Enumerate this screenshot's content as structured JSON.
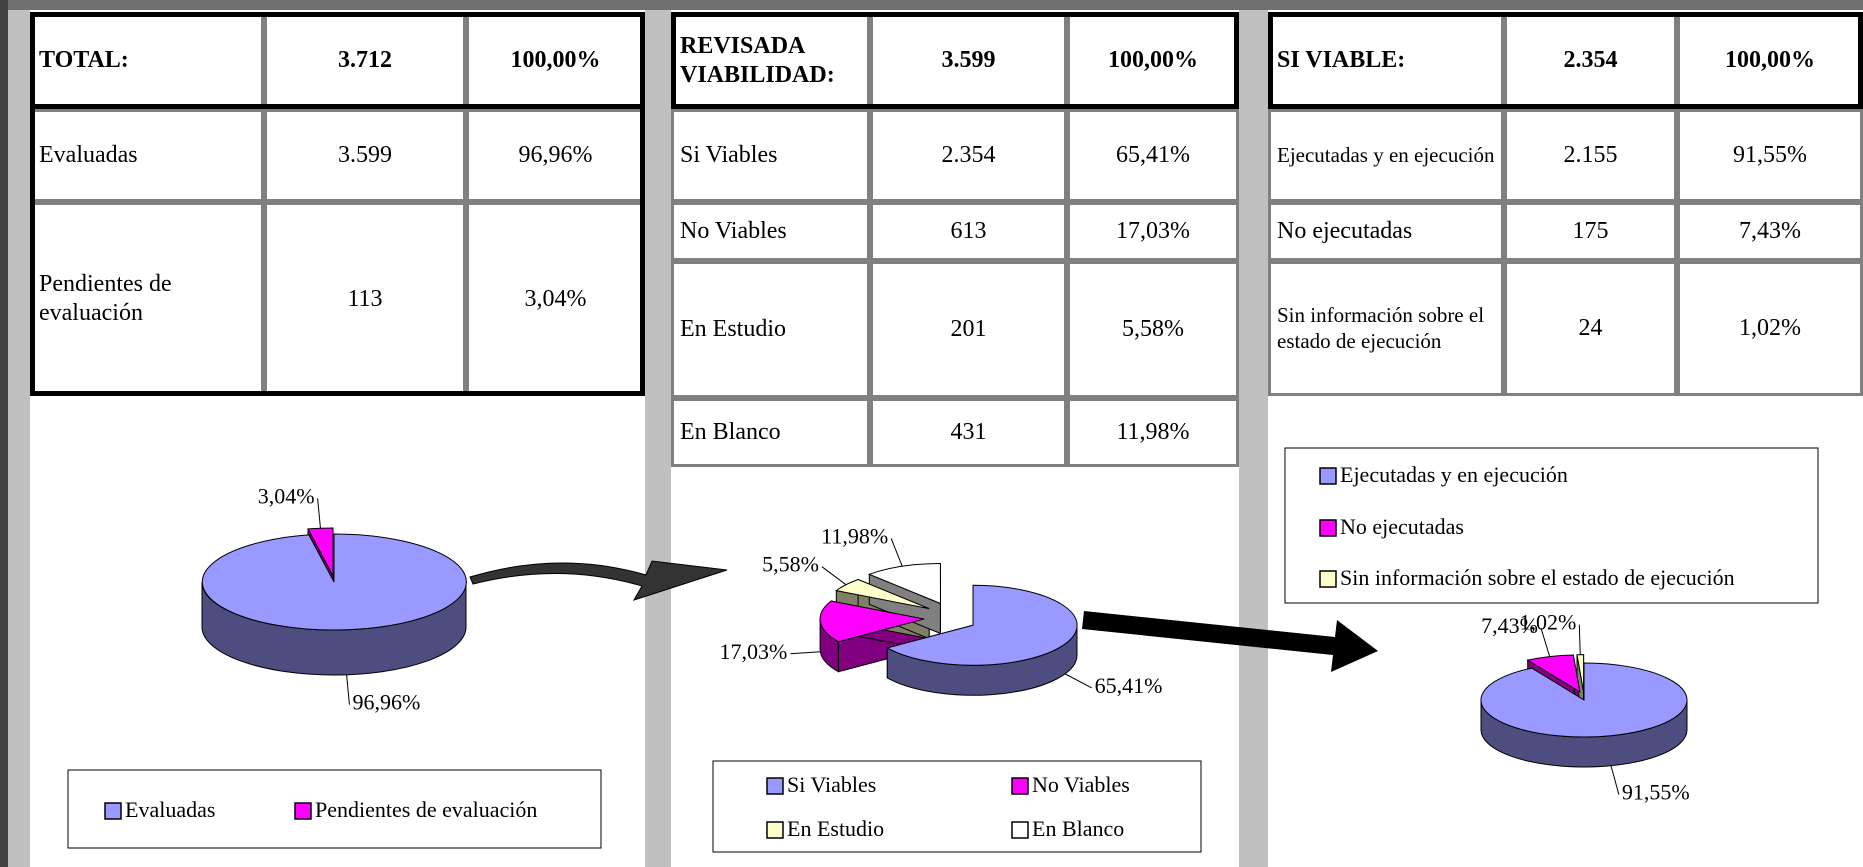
{
  "tables": [
    {
      "header": [
        "TOTAL:",
        "3.712",
        "100,00%"
      ],
      "rows": [
        [
          "Evaluadas",
          "3.599",
          "96,96%"
        ],
        [
          "Pendientes de evaluación",
          "113",
          "3,04%"
        ]
      ]
    },
    {
      "header": [
        "REVISADA VIABILIDAD:",
        "3.599",
        "100,00%"
      ],
      "rows": [
        [
          "Si Viables",
          "2.354",
          "65,41%"
        ],
        [
          "No Viables",
          "613",
          "17,03%"
        ],
        [
          "En Estudio",
          "201",
          "5,58%"
        ],
        [
          "En Blanco",
          "431",
          "11,98%"
        ]
      ]
    },
    {
      "header": [
        "SI VIABLE:",
        "2.354",
        "100,00%"
      ],
      "rows": [
        [
          "Ejecutadas y en ejecución",
          "2.155",
          "91,55%"
        ],
        [
          "No ejecutadas",
          "175",
          "7,43%"
        ],
        [
          "Sin información sobre el estado de ejecución",
          "24",
          "1,02%"
        ]
      ]
    }
  ],
  "chart_data": [
    {
      "type": "pie",
      "categories": [
        "Evaluadas",
        "Pendientes de evaluación"
      ],
      "values": [
        96.96,
        3.04
      ],
      "value_labels": [
        "96,96%",
        "3,04%"
      ],
      "colors": [
        "#9999ff",
        "#ff00ff"
      ]
    },
    {
      "type": "pie",
      "categories": [
        "Si Viables",
        "No Viables",
        "En Estudio",
        "En Blanco"
      ],
      "values": [
        65.41,
        17.03,
        5.58,
        11.98
      ],
      "value_labels": [
        "65,41%",
        "17,03%",
        "5,58%",
        "11,98%"
      ],
      "colors": [
        "#9999ff",
        "#ff00ff",
        "#ffffcc",
        "#ffffff"
      ]
    },
    {
      "type": "pie",
      "categories": [
        "Ejecutadas y en ejecución",
        "No ejecutadas",
        "Sin información sobre el estado de ejecución"
      ],
      "values": [
        91.55,
        7.43,
        1.02
      ],
      "value_labels": [
        "91,55%",
        "7,43%",
        "1,02%"
      ],
      "colors": [
        "#9999ff",
        "#ff00ff",
        "#ffffcc"
      ]
    }
  ]
}
